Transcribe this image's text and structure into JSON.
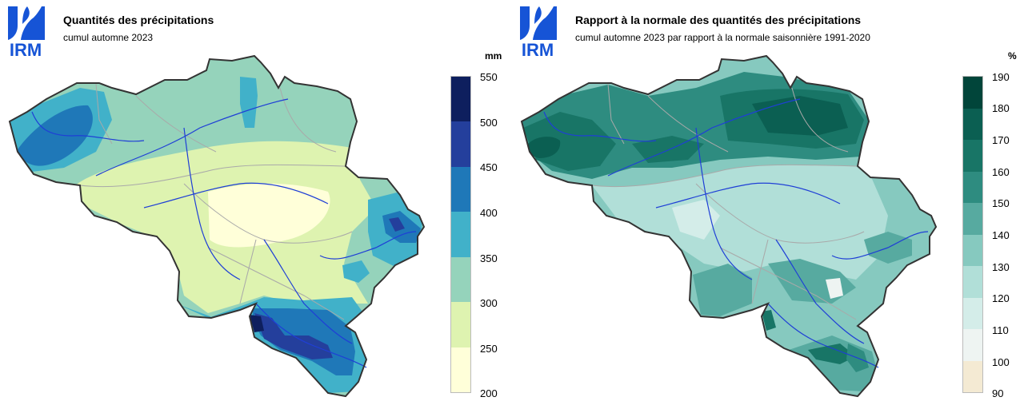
{
  "panels": [
    {
      "logo_text": "IRM",
      "title": "Quantités des précipitations",
      "subtitle": "cumul automne 2023",
      "unit": "mm",
      "legend": {
        "ticks": [
          "550",
          "500",
          "450",
          "400",
          "350",
          "300",
          "250",
          "200"
        ],
        "colors": [
          "#0e1f5e",
          "#243f9c",
          "#1f78b8",
          "#41b1c9",
          "#95d3bb",
          "#def3b0",
          "#ffffd9"
        ]
      }
    },
    {
      "logo_text": "IRM",
      "title": "Rapport à la normale des quantités des précipitations",
      "subtitle": "cumul automne 2023 par rapport à la normale saisonnière 1991-2020",
      "unit": "%",
      "legend": {
        "ticks": [
          "190",
          "180",
          "170",
          "160",
          "150",
          "140",
          "130",
          "120",
          "110",
          "100",
          "90"
        ],
        "colors": [
          "#01453a",
          "#0b5f52",
          "#187566",
          "#2e8c80",
          "#57aaa0",
          "#86c9bf",
          "#b1dfd8",
          "#d4ede9",
          "#eef4f2",
          "#f4ead3"
        ]
      }
    }
  ]
}
